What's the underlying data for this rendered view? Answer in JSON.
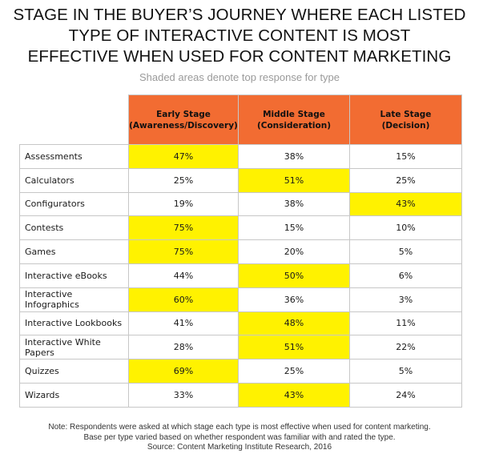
{
  "title_lines": [
    "STAGE IN THE BUYER’S JOURNEY WHERE EACH LISTED",
    "TYPE OF INTERACTIVE CONTENT IS MOST",
    "EFFECTIVE WHEN USED FOR CONTENT MARKETING"
  ],
  "subtitle": "Shaded areas denote top response for type",
  "notes": [
    "Note: Respondents were asked at which stage each type is most effective when used for content marketing.",
    "Base per type varied based on whether respondent was familiar with and rated the type.",
    "Source: Content Marketing Institute Research, 2016"
  ],
  "colors": {
    "header": "#f26c32",
    "highlight": "#fff200",
    "border": "#c7c7c7"
  },
  "chart_data": {
    "type": "table",
    "columns": [
      {
        "line1": "Early Stage",
        "line2": "(Awareness/Discovery)"
      },
      {
        "line1": "Middle Stage",
        "line2": "(Consideration)"
      },
      {
        "line1": "Late Stage",
        "line2": "(Decision)"
      }
    ],
    "rows": [
      {
        "label": "Assessments",
        "values": [
          "47%",
          "38%",
          "15%"
        ],
        "top": 0
      },
      {
        "label": "Calculators",
        "values": [
          "25%",
          "51%",
          "25%"
        ],
        "top": 1
      },
      {
        "label": "Configurators",
        "values": [
          "19%",
          "38%",
          "43%"
        ],
        "top": 2
      },
      {
        "label": "Contests",
        "values": [
          "75%",
          "15%",
          "10%"
        ],
        "top": 0
      },
      {
        "label": "Games",
        "values": [
          "75%",
          "20%",
          "5%"
        ],
        "top": 0
      },
      {
        "label": "Interactive eBooks",
        "values": [
          "44%",
          "50%",
          "6%"
        ],
        "top": 1
      },
      {
        "label": "Interactive Infographics",
        "values": [
          "60%",
          "36%",
          "3%"
        ],
        "top": 0
      },
      {
        "label": "Interactive Lookbooks",
        "values": [
          "41%",
          "48%",
          "11%"
        ],
        "top": 1
      },
      {
        "label": "Interactive White Papers",
        "values": [
          "28%",
          "51%",
          "22%"
        ],
        "top": 1
      },
      {
        "label": "Quizzes",
        "values": [
          "69%",
          "25%",
          "5%"
        ],
        "top": 0
      },
      {
        "label": "Wizards",
        "values": [
          "33%",
          "43%",
          "24%"
        ],
        "top": 1
      }
    ]
  }
}
